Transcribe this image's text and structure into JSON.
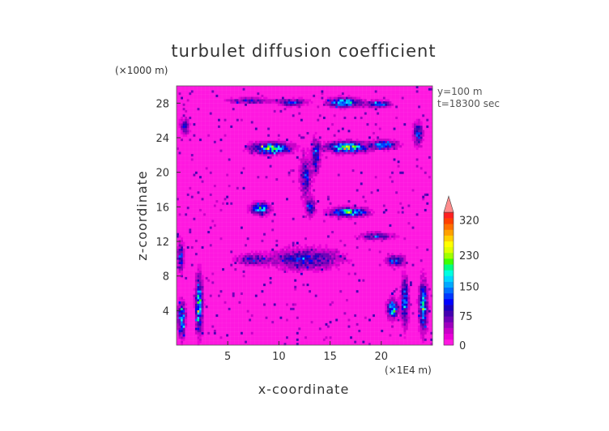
{
  "chart_data": {
    "type": "heatmap",
    "title": "turbulet diffusion coefficient",
    "xlabel": "x-coordinate",
    "ylabel": "z-coordinate",
    "x_unit": "(×1E4 m)",
    "y_unit": "(×1000 m)",
    "annotations": [
      "y=100 m",
      "t=18300 sec"
    ],
    "xlim": [
      0,
      25
    ],
    "ylim": [
      0,
      30
    ],
    "x_ticks": [
      5,
      10,
      15,
      20
    ],
    "y_ticks": [
      4,
      8,
      12,
      16,
      20,
      24,
      28
    ],
    "colorbar": {
      "ticks": [
        0,
        75,
        150,
        230,
        320
      ],
      "tick_labels": [
        "0",
        "75",
        "150",
        "230",
        "320"
      ],
      "range": [
        0,
        340
      ],
      "extend": "max",
      "colors": [
        "#ff18e0",
        "#ea00d8",
        "#c800c8",
        "#9d00be",
        "#7000b8",
        "#4400b0",
        "#1a00c0",
        "#0000ff",
        "#0038ff",
        "#0070ff",
        "#00a8ff",
        "#00d8ff",
        "#00ffe0",
        "#00ff80",
        "#40ff00",
        "#a0ff00",
        "#e0ff00",
        "#ffff00",
        "#ffd000",
        "#ffa000",
        "#ff7000",
        "#ff4000",
        "#ff2020"
      ],
      "extend_color": "#ff8c8c"
    },
    "background_value": 10,
    "features": [
      {
        "x": 11.3,
        "z": 28.1,
        "rx": 1.2,
        "rz": 0.35,
        "peak": 110
      },
      {
        "x": 16.4,
        "z": 28.1,
        "rx": 1.4,
        "rz": 0.45,
        "peak": 175
      },
      {
        "x": 19.7,
        "z": 27.9,
        "rx": 1.1,
        "rz": 0.35,
        "peak": 130
      },
      {
        "x": 7.2,
        "z": 28.3,
        "rx": 1.8,
        "rz": 0.3,
        "peak": 90
      },
      {
        "x": 9.2,
        "z": 22.8,
        "rx": 1.7,
        "rz": 0.55,
        "peak": 200
      },
      {
        "x": 16.6,
        "z": 22.9,
        "rx": 1.7,
        "rz": 0.55,
        "peak": 210
      },
      {
        "x": 20.2,
        "z": 23.2,
        "rx": 1.2,
        "rz": 0.45,
        "peak": 140
      },
      {
        "x": 13.6,
        "z": 22.0,
        "rx": 0.35,
        "rz": 1.6,
        "peak": 120
      },
      {
        "x": 12.6,
        "z": 19.5,
        "rx": 0.5,
        "rz": 2.0,
        "peak": 100
      },
      {
        "x": 8.2,
        "z": 15.8,
        "rx": 0.8,
        "rz": 0.6,
        "peak": 175
      },
      {
        "x": 16.8,
        "z": 15.4,
        "rx": 1.5,
        "rz": 0.45,
        "peak": 200
      },
      {
        "x": 13.1,
        "z": 16.0,
        "rx": 0.4,
        "rz": 0.9,
        "peak": 110
      },
      {
        "x": 19.5,
        "z": 12.6,
        "rx": 1.4,
        "rz": 0.4,
        "peak": 95
      },
      {
        "x": 12.6,
        "z": 10.0,
        "rx": 3.0,
        "rz": 1.1,
        "peak": 95
      },
      {
        "x": 7.4,
        "z": 9.9,
        "rx": 1.4,
        "rz": 0.55,
        "peak": 85
      },
      {
        "x": 21.4,
        "z": 9.8,
        "rx": 0.8,
        "rz": 0.5,
        "peak": 120
      },
      {
        "x": 0.4,
        "z": 10.3,
        "rx": 0.3,
        "rz": 1.5,
        "peak": 110
      },
      {
        "x": 2.2,
        "z": 4.8,
        "rx": 0.3,
        "rz": 2.8,
        "peak": 190
      },
      {
        "x": 0.5,
        "z": 3.0,
        "rx": 0.35,
        "rz": 1.8,
        "peak": 140
      },
      {
        "x": 21.1,
        "z": 4.2,
        "rx": 0.45,
        "rz": 1.0,
        "peak": 180
      },
      {
        "x": 22.3,
        "z": 5.0,
        "rx": 0.3,
        "rz": 2.5,
        "peak": 150
      },
      {
        "x": 24.1,
        "z": 4.5,
        "rx": 0.35,
        "rz": 2.6,
        "peak": 170
      },
      {
        "x": 0.8,
        "z": 25.3,
        "rx": 0.4,
        "rz": 0.8,
        "peak": 90
      },
      {
        "x": 23.6,
        "z": 24.5,
        "rx": 0.4,
        "rz": 1.2,
        "peak": 110
      }
    ]
  }
}
